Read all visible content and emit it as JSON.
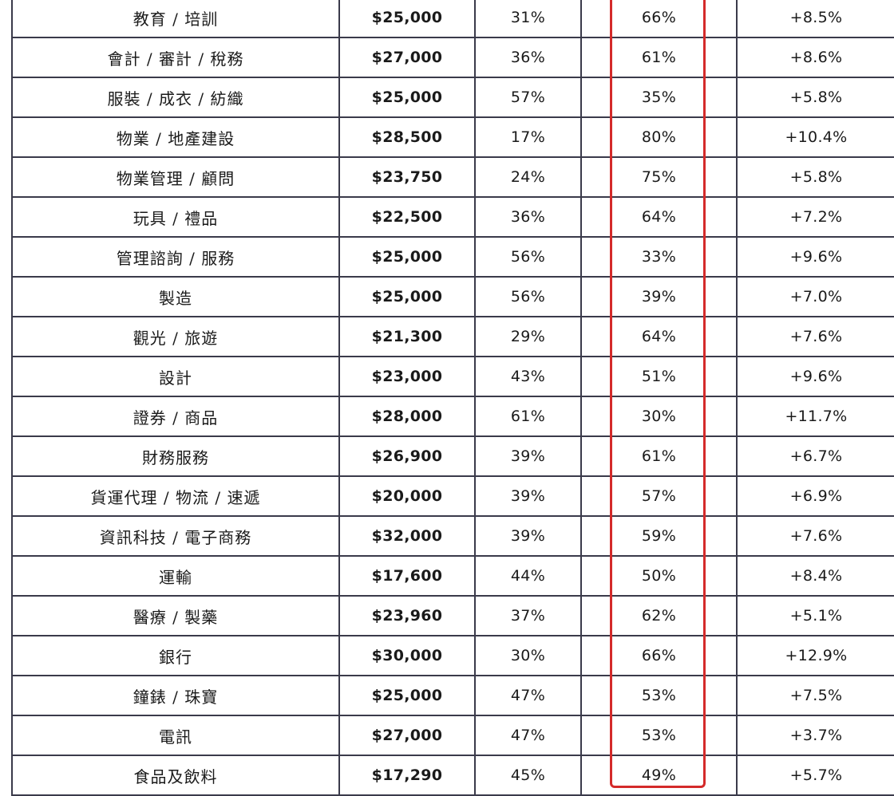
{
  "table": {
    "rows": [
      {
        "industry": "教育 / 培訓",
        "salary": "$25,000",
        "pct_a": "31%",
        "pct_b": "66%",
        "change": "+8.5%"
      },
      {
        "industry": "會計 / 審計 / 稅務",
        "salary": "$27,000",
        "pct_a": "36%",
        "pct_b": "61%",
        "change": "+8.6%"
      },
      {
        "industry": "服裝 / 成衣 / 紡織",
        "salary": "$25,000",
        "pct_a": "57%",
        "pct_b": "35%",
        "change": "+5.8%"
      },
      {
        "industry": "物業 / 地產建設",
        "salary": "$28,500",
        "pct_a": "17%",
        "pct_b": "80%",
        "change": "+10.4%"
      },
      {
        "industry": "物業管理 / 顧問",
        "salary": "$23,750",
        "pct_a": "24%",
        "pct_b": "75%",
        "change": "+5.8%"
      },
      {
        "industry": "玩具 / 禮品",
        "salary": "$22,500",
        "pct_a": "36%",
        "pct_b": "64%",
        "change": "+7.2%"
      },
      {
        "industry": "管理諮詢 / 服務",
        "salary": "$25,000",
        "pct_a": "56%",
        "pct_b": "33%",
        "change": "+9.6%"
      },
      {
        "industry": "製造",
        "salary": "$25,000",
        "pct_a": "56%",
        "pct_b": "39%",
        "change": "+7.0%"
      },
      {
        "industry": "觀光 / 旅遊",
        "salary": "$21,300",
        "pct_a": "29%",
        "pct_b": "64%",
        "change": "+7.6%"
      },
      {
        "industry": "設計",
        "salary": "$23,000",
        "pct_a": "43%",
        "pct_b": "51%",
        "change": "+9.6%"
      },
      {
        "industry": "證券 / 商品",
        "salary": "$28,000",
        "pct_a": "61%",
        "pct_b": "30%",
        "change": "+11.7%"
      },
      {
        "industry": "財務服務",
        "salary": "$26,900",
        "pct_a": "39%",
        "pct_b": "61%",
        "change": "+6.7%"
      },
      {
        "industry": "貨運代理 / 物流 / 速遞",
        "salary": "$20,000",
        "pct_a": "39%",
        "pct_b": "57%",
        "change": "+6.9%"
      },
      {
        "industry": "資訊科技 / 電子商務",
        "salary": "$32,000",
        "pct_a": "39%",
        "pct_b": "59%",
        "change": "+7.6%"
      },
      {
        "industry": "運輸",
        "salary": "$17,600",
        "pct_a": "44%",
        "pct_b": "50%",
        "change": "+8.4%"
      },
      {
        "industry": "醫療 / 製藥",
        "salary": "$23,960",
        "pct_a": "37%",
        "pct_b": "62%",
        "change": "+5.1%"
      },
      {
        "industry": "銀行",
        "salary": "$30,000",
        "pct_a": "30%",
        "pct_b": "66%",
        "change": "+12.9%"
      },
      {
        "industry": "鐘錶 / 珠寶",
        "salary": "$25,000",
        "pct_a": "47%",
        "pct_b": "53%",
        "change": "+7.5%"
      },
      {
        "industry": "電訊",
        "salary": "$27,000",
        "pct_a": "47%",
        "pct_b": "53%",
        "change": "+3.7%"
      },
      {
        "industry": "食品及飲料",
        "salary": "$17,290",
        "pct_a": "45%",
        "pct_b": "49%",
        "change": "+5.7%"
      }
    ]
  },
  "highlight": {
    "column": "pct_b",
    "color": "#d42a2a"
  },
  "colors": {
    "grid_line": "#3a3a4a",
    "text": "#1a1a1a",
    "background": "#ffffff"
  }
}
